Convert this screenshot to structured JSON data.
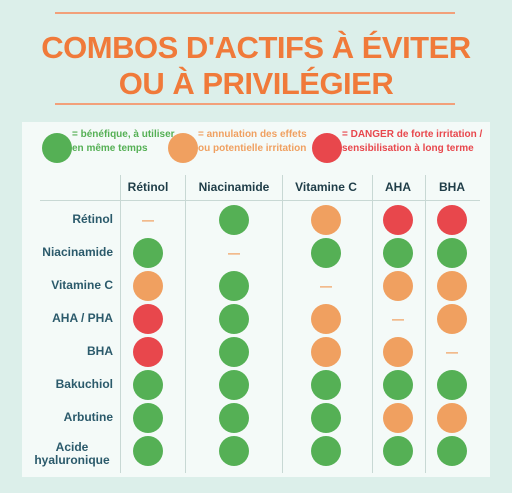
{
  "title": [
    "COMBOS D'ACTIFS À ÉVITER",
    "OU À PRIVILÉGIER"
  ],
  "legend": [
    {
      "color": "#55b055",
      "text": "= bénéfique, à utiliser en même temps"
    },
    {
      "color": "#f0a060",
      "text": "= annulation des effets ou potentielle irritation"
    },
    {
      "color": "#e8474c",
      "text": "= DANGER de forte irritation / sensibilisation à long terme"
    }
  ],
  "table": {
    "columns": [
      "Rétinol",
      "Niacinamide",
      "Vitamine C",
      "AHA",
      "BHA"
    ],
    "rows": [
      {
        "label": "Rétinol",
        "cells": [
          "—",
          "#55b055",
          "#f0a060",
          "#e8474c",
          "#e8474c"
        ]
      },
      {
        "label": "Niacinamide",
        "cells": [
          "#55b055",
          "—",
          "#55b055",
          "#55b055",
          "#55b055"
        ]
      },
      {
        "label": "Vitamine C",
        "cells": [
          "#f0a060",
          "#55b055",
          "—",
          "#f0a060",
          "#f0a060"
        ]
      },
      {
        "label": "AHA / PHA",
        "cells": [
          "#e8474c",
          "#55b055",
          "#f0a060",
          "—",
          "#f0a060"
        ]
      },
      {
        "label": "BHA",
        "cells": [
          "#e8474c",
          "#55b055",
          "#f0a060",
          "#f0a060",
          "—"
        ]
      },
      {
        "label": "Bakuchiol",
        "cells": [
          "#55b055",
          "#55b055",
          "#55b055",
          "#55b055",
          "#55b055"
        ]
      },
      {
        "label": "Arbutine",
        "cells": [
          "#55b055",
          "#55b055",
          "#55b055",
          "#f0a060",
          "#f0a060"
        ]
      },
      {
        "label": "Acide hyaluronique",
        "cells": [
          "#55b055",
          "#55b055",
          "#55b055",
          "#55b055",
          "#55b055"
        ]
      }
    ]
  }
}
